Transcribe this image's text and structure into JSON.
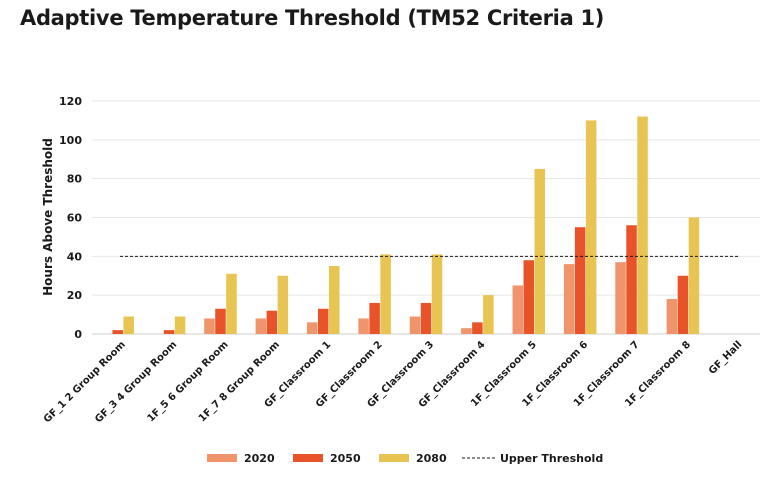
{
  "chart_data": {
    "type": "bar",
    "title": "Adaptive Temperature Threshold (TM52 Criteria 1)",
    "ylabel": "Hours Above Threshold",
    "xlabel": "",
    "ylim": [
      0,
      120
    ],
    "yticks": [
      0,
      20,
      40,
      60,
      80,
      100,
      120
    ],
    "grid": true,
    "legend_position": "bottom",
    "categories": [
      "GF_1 2 Group Room",
      "GF_3 4 Group Room",
      "1F_5 6 Group Room",
      "1F_7 8 Group Room",
      "GF_Classroom 1",
      "GF_Classroom 2",
      "GF_Classroom 3",
      "GF_Classroom 4",
      "1F_Classroom 5",
      "1F_Classroom 6",
      "1F_Classroom 7",
      "1F_Classroom 8",
      "GF_Hall"
    ],
    "series": [
      {
        "name": "2020",
        "color": "#f0956b",
        "values": [
          0,
          0,
          8,
          8,
          6,
          8,
          9,
          3,
          25,
          36,
          37,
          18,
          0
        ]
      },
      {
        "name": "2050",
        "color": "#e8532a",
        "values": [
          2,
          2,
          13,
          12,
          13,
          16,
          16,
          6,
          38,
          55,
          56,
          30,
          0
        ]
      },
      {
        "name": "2080",
        "color": "#e8c452",
        "values": [
          9,
          9,
          31,
          30,
          35,
          41,
          41,
          20,
          85,
          110,
          112,
          60,
          0
        ]
      }
    ],
    "reference_line": {
      "name": "Upper Threshold",
      "value": 40,
      "style": "dashed",
      "color": "#1a1a1a"
    }
  }
}
